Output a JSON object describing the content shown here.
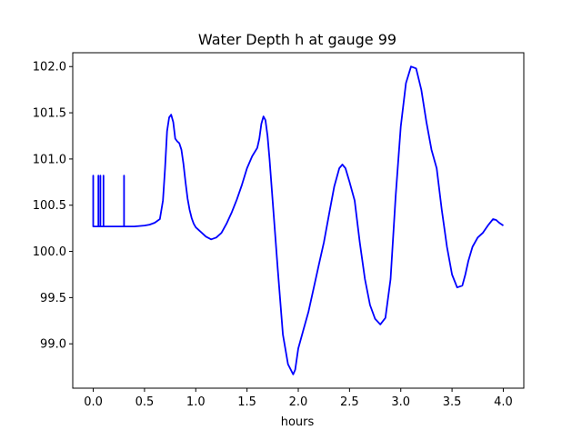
{
  "chart_data": {
    "type": "line",
    "title": "Water Depth h at gauge 99",
    "xlabel": "hours",
    "ylabel": "",
    "xlim": [
      -0.2,
      4.2
    ],
    "ylim": [
      98.52,
      102.15
    ],
    "xticks": [
      0.0,
      0.5,
      1.0,
      1.5,
      2.0,
      2.5,
      3.0,
      3.5,
      4.0
    ],
    "xtick_labels": [
      "0.0",
      "0.5",
      "1.0",
      "1.5",
      "2.0",
      "2.5",
      "3.0",
      "3.5",
      "4.0"
    ],
    "yticks": [
      99.0,
      99.5,
      100.0,
      100.5,
      101.0,
      101.5,
      102.0
    ],
    "ytick_labels": [
      "99.0",
      "99.5",
      "100.0",
      "100.5",
      "101.0",
      "101.5",
      "102.0"
    ],
    "grid": false,
    "colors": {
      "line": "#0000ff",
      "axes": "#000000",
      "background": "#ffffff"
    },
    "series": [
      {
        "x": [
          0.0,
          0.0,
          0.0,
          0.05,
          0.05,
          0.05,
          0.07,
          0.07,
          0.07,
          0.1,
          0.1,
          0.1,
          0.12,
          0.12,
          0.12,
          0.3,
          0.3,
          0.3,
          0.32,
          0.32,
          0.32,
          0.4,
          0.5,
          0.55,
          0.6,
          0.65,
          0.68,
          0.7,
          0.72,
          0.74,
          0.76,
          0.78,
          0.8,
          0.82,
          0.84,
          0.86,
          0.88,
          0.9,
          0.92,
          0.94,
          0.96,
          0.98,
          1.0,
          1.05,
          1.1,
          1.15,
          1.2,
          1.25,
          1.3,
          1.35,
          1.4,
          1.45,
          1.5,
          1.55,
          1.6,
          1.62,
          1.64,
          1.66,
          1.68,
          1.7,
          1.72,
          1.75,
          1.8,
          1.85,
          1.9,
          1.95,
          1.97,
          2.0,
          2.05,
          2.1,
          2.15,
          2.2,
          2.25,
          2.3,
          2.35,
          2.4,
          2.43,
          2.46,
          2.5,
          2.55,
          2.6,
          2.65,
          2.7,
          2.75,
          2.8,
          2.85,
          2.9,
          2.95,
          3.0,
          3.05,
          3.1,
          3.15,
          3.2,
          3.25,
          3.3,
          3.35,
          3.4,
          3.45,
          3.5,
          3.55,
          3.6,
          3.63,
          3.66,
          3.7,
          3.75,
          3.8,
          3.85,
          3.9,
          3.93,
          3.96,
          4.0
        ],
        "y": [
          100.27,
          100.82,
          100.27,
          100.27,
          100.82,
          100.27,
          100.27,
          100.82,
          100.27,
          100.27,
          100.82,
          100.27,
          100.27,
          100.27,
          100.27,
          100.27,
          100.82,
          100.27,
          100.27,
          100.27,
          100.27,
          100.27,
          100.28,
          100.29,
          100.31,
          100.35,
          100.55,
          100.9,
          101.3,
          101.45,
          101.48,
          101.4,
          101.22,
          101.19,
          101.17,
          101.1,
          100.95,
          100.75,
          100.57,
          100.45,
          100.36,
          100.3,
          100.26,
          100.21,
          100.16,
          100.13,
          100.15,
          100.2,
          100.3,
          100.42,
          100.56,
          100.72,
          100.9,
          101.03,
          101.12,
          101.22,
          101.38,
          101.46,
          101.42,
          101.25,
          101.0,
          100.55,
          99.8,
          99.1,
          98.78,
          98.67,
          98.72,
          98.95,
          99.15,
          99.35,
          99.6,
          99.85,
          100.1,
          100.4,
          100.7,
          100.9,
          100.94,
          100.9,
          100.75,
          100.55,
          100.1,
          99.7,
          99.42,
          99.27,
          99.21,
          99.28,
          99.7,
          100.6,
          101.35,
          101.82,
          102.0,
          101.98,
          101.75,
          101.4,
          101.1,
          100.9,
          100.45,
          100.05,
          99.75,
          99.61,
          99.63,
          99.75,
          99.9,
          100.05,
          100.15,
          100.2,
          100.28,
          100.35,
          100.34,
          100.31,
          100.28
        ]
      }
    ]
  }
}
